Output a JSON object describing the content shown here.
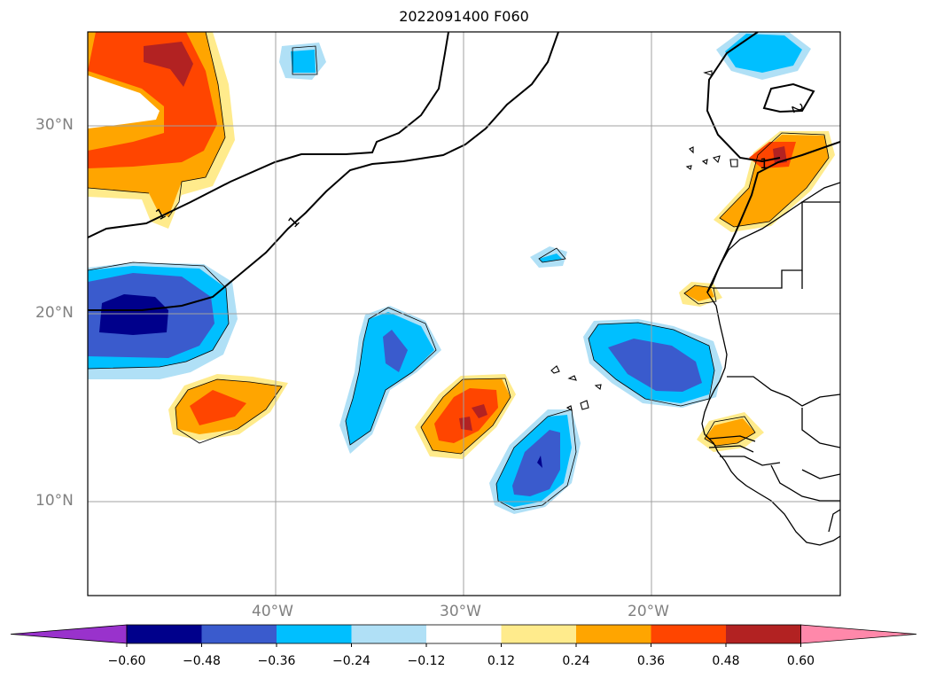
{
  "title": "2022091400 F060",
  "map": {
    "lon_range": [
      -50,
      -10
    ],
    "lat_range": [
      5,
      35
    ],
    "lat_labels": [
      {
        "value": 30,
        "text": "30°N"
      },
      {
        "value": 20,
        "text": "20°N"
      },
      {
        "value": 10,
        "text": "10°N"
      }
    ],
    "lon_labels": [
      {
        "value": -40,
        "text": "40°W"
      },
      {
        "value": -30,
        "text": "30°W"
      },
      {
        "value": -20,
        "text": "20°W"
      }
    ],
    "contour_labels": [
      "1",
      "1",
      "1",
      "2"
    ]
  },
  "colorbar": {
    "colors": [
      "#9932cc",
      "#00008b",
      "#3a5bcd",
      "#00bfff",
      "#b0e0f6",
      "#ffffff",
      "#ffeb8c",
      "#ffa500",
      "#ff4500",
      "#b22222",
      "#ff88aa"
    ],
    "tick_labels": [
      "−0.60",
      "−0.48",
      "−0.36",
      "−0.24",
      "−0.12",
      "0.12",
      "0.24",
      "0.36",
      "0.48",
      "0.60"
    ],
    "tick_values": [
      -0.6,
      -0.48,
      -0.36,
      -0.24,
      -0.12,
      0.12,
      0.24,
      0.36,
      0.48,
      0.6
    ],
    "extend": "both"
  }
}
